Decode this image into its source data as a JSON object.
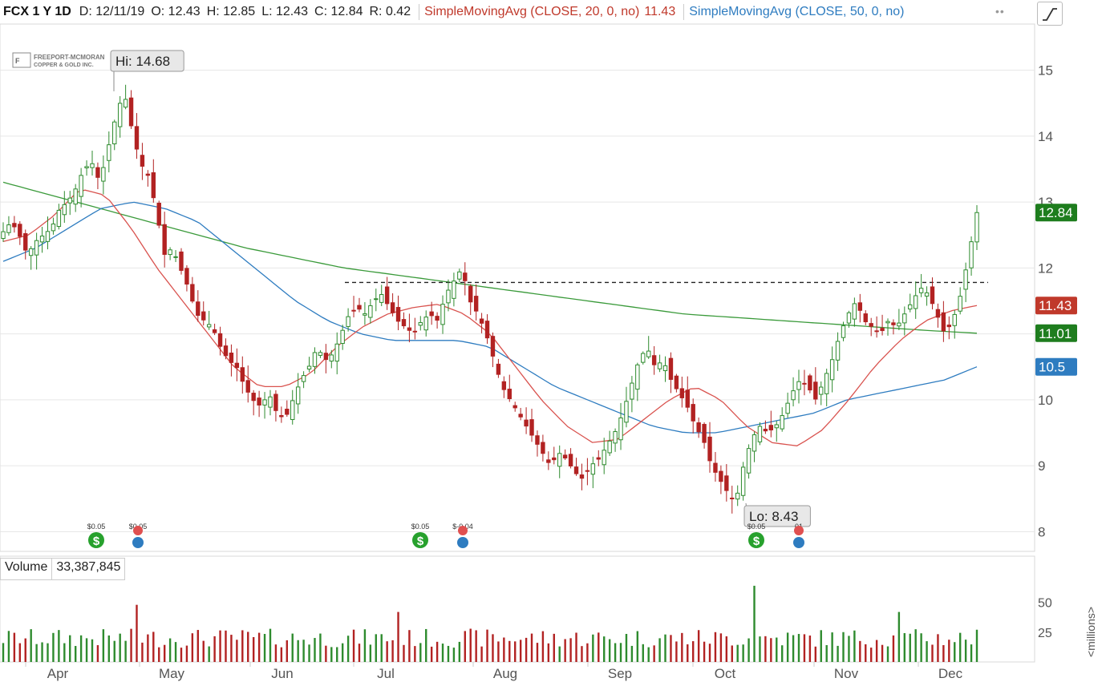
{
  "header": {
    "symbol": "FCX 1 Y 1D",
    "date": "D: 12/11/19",
    "open": "O: 12.43",
    "high": "H: 12.85",
    "low": "L: 12.43",
    "close": "C: 12.84",
    "range": "R: 0.42",
    "sma20_label": "SimpleMovingAvg (CLOSE, 20, 0, no)",
    "sma20_value": "11.43",
    "sma50_label": "SimpleMovingAvg (CLOSE, 50, 0, no)",
    "menu_icon": "ellipsis-icon",
    "drawing_icon": "drawing-tool-icon"
  },
  "logo": {
    "line1": "FREEPORT-MCMORAN",
    "line2": "COPPER & GOLD INC."
  },
  "volume_panel": {
    "label": "Volume",
    "value": "33,387,845",
    "unit_label": "<millions>"
  },
  "colors": {
    "up": "#2e8b2e",
    "down": "#b22222",
    "sma20": "#d9534f",
    "sma50": "#2e7cc0",
    "sma200": "#3a9a3a",
    "axis_text": "#555555",
    "grid": "#e6e6e6"
  },
  "chart_data": {
    "type": "candlestick",
    "ylim": [
      7.7,
      15.7
    ],
    "y_ticks": [
      8,
      9,
      10,
      11,
      12,
      13,
      14,
      15
    ],
    "x_labels": [
      "Apr",
      "May",
      "Jun",
      "Jul",
      "Aug",
      "Sep",
      "Oct",
      "Nov",
      "Dec"
    ],
    "annotations": {
      "high": {
        "label": "Hi: 14.68",
        "value": 14.68
      },
      "low": {
        "label": "Lo: 8.43",
        "value": 8.43
      }
    },
    "resistance_level": 11.78,
    "price_labels": [
      {
        "text": "12.84",
        "value": 12.84,
        "color": "#1e7d1e"
      },
      {
        "text": "11.43",
        "value": 11.43,
        "color": "#c0392b"
      },
      {
        "text": "11.01",
        "value": 11.01,
        "color": "#1e7d1e"
      },
      {
        "text": "10.5",
        "value": 10.5,
        "color": "#2e7cc0"
      }
    ],
    "events": [
      {
        "top": "$0.05",
        "kind": "dividend",
        "marks": [
          "dividend"
        ]
      },
      {
        "top": "$0.05",
        "kind": "earnings",
        "marks": [
          "earnings"
        ]
      },
      {
        "top": "$0.05",
        "kind": "dividend",
        "marks": [
          "dividend"
        ]
      },
      {
        "top": "$-0.04",
        "kind": "earnings",
        "marks": [
          "earnings"
        ]
      },
      {
        "top": "$0.05",
        "kind": "dividend",
        "marks": [
          "dividend"
        ]
      },
      {
        "top": "01",
        "kind": "earnings",
        "marks": [
          "earnings"
        ]
      }
    ],
    "volume": {
      "ylim": [
        0,
        70
      ],
      "ticks": [
        25,
        50
      ]
    },
    "price_path": [
      12.55,
      12.7,
      12.5,
      12.2,
      12.4,
      12.5,
      12.6,
      12.9,
      13.0,
      13.2,
      13.5,
      13.6,
      13.3,
      13.8,
      14.3,
      14.68,
      14.1,
      13.6,
      13.4,
      12.9,
      12.2,
      12.3,
      12.0,
      11.7,
      11.3,
      11.2,
      11.1,
      10.8,
      10.6,
      10.5,
      10.2,
      10.0,
      9.9,
      10.1,
      9.8,
      9.7,
      10.0,
      10.3,
      10.5,
      10.8,
      10.6,
      10.7,
      11.0,
      11.3,
      11.4,
      11.3,
      11.5,
      11.6,
      11.4,
      11.2,
      11.1,
      11.0,
      11.2,
      11.3,
      11.2,
      11.6,
      11.8,
      12.0,
      11.5,
      11.3,
      11.0,
      10.6,
      10.2,
      10.0,
      9.8,
      9.6,
      9.4,
      9.2,
      9.0,
      9.2,
      9.1,
      8.9,
      8.8,
      9.0,
      9.1,
      9.3,
      9.5,
      9.8,
      10.2,
      10.6,
      10.8,
      10.5,
      10.6,
      10.3,
      10.1,
      9.9,
      9.6,
      9.4,
      9.0,
      8.8,
      8.6,
      8.43,
      9.0,
      9.4,
      9.6,
      9.5,
      9.6,
      9.8,
      10.1,
      10.3,
      10.2,
      10.0,
      10.3,
      10.6,
      11.0,
      11.3,
      11.5,
      11.2,
      11.1,
      11.0,
      11.2,
      11.1,
      11.3,
      11.5,
      11.7,
      11.6,
      11.3,
      11.0,
      11.2,
      11.6,
      12.2,
      12.84
    ],
    "sma20_path": [
      12.4,
      12.5,
      12.8,
      13.2,
      13.1,
      12.6,
      12.0,
      11.5,
      11.0,
      10.5,
      10.2,
      10.2,
      10.4,
      10.8,
      11.1,
      11.3,
      11.4,
      11.45,
      11.3,
      11.0,
      10.5,
      10.0,
      9.6,
      9.35,
      9.4,
      9.7,
      10.0,
      10.2,
      10.0,
      9.6,
      9.35,
      9.3,
      9.55,
      10.0,
      10.5,
      10.9,
      11.2,
      11.35,
      11.43
    ],
    "sma50_path": [
      12.1,
      12.3,
      12.6,
      12.9,
      13.0,
      12.9,
      12.7,
      12.3,
      11.9,
      11.5,
      11.2,
      11.0,
      10.9,
      10.9,
      10.9,
      10.8,
      10.5,
      10.2,
      10.0,
      9.8,
      9.6,
      9.5,
      9.5,
      9.6,
      9.7,
      9.8,
      10.0,
      10.1,
      10.2,
      10.3,
      10.5
    ],
    "sma200_path": [
      13.3,
      13.1,
      12.9,
      12.7,
      12.5,
      12.3,
      12.15,
      12.0,
      11.9,
      11.8,
      11.7,
      11.6,
      11.5,
      11.4,
      11.3,
      11.25,
      11.2,
      11.15,
      11.1,
      11.05,
      11.01
    ]
  }
}
